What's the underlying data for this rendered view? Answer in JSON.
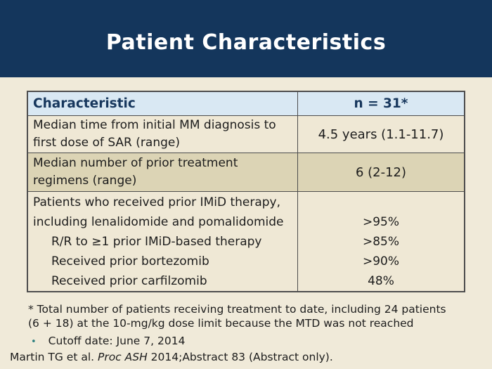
{
  "title": "Patient Characteristics",
  "table": {
    "header": {
      "characteristic": "Characteristic",
      "n": "n = 31*"
    },
    "rows": [
      {
        "lines": [
          "Median time from initial MM diagnosis to",
          "first dose of SAR (range)"
        ],
        "value": "4.5 years (1.1-11.7)"
      },
      {
        "lines": [
          "Median number of prior treatment",
          "regimens (range)"
        ],
        "value": "6 (2-12)"
      }
    ],
    "group": {
      "lines": [
        {
          "text": "Patients who received prior IMiD therapy,",
          "value": ""
        },
        {
          "text": "including lenalidomide and pomalidomide",
          "value": ">95%"
        },
        {
          "text": "R/R to ≥1 prior IMiD-based therapy",
          "value": ">85%"
        },
        {
          "text": "Received prior bortezomib",
          "value": ">90%"
        },
        {
          "text": "Received prior carfilzomib",
          "value": "48%"
        }
      ]
    }
  },
  "footnotes": {
    "asterisk_lines": [
      "* Total number of patients receiving treatment to date, including 24 patients",
      "(6 + 18) at the 10-mg/kg dose limit because the MTD was not reached"
    ],
    "bullet_icon": "•",
    "bullet_text": "Cutoff date: June 7, 2014"
  },
  "citation": {
    "prefix": "Martin TG et al. ",
    "italic": "Proc ASH",
    "suffix": " 2014;Abstract 83 (Abstract only)."
  },
  "colors": {
    "band_navy": "#14365C",
    "page_background": "#F0EAD9",
    "table_header_blue": "#D9E8F3",
    "row_cream": "#EFE8D5",
    "row_tan": "#DCD4B5",
    "border_gray": "#4D4D4D",
    "header_text_navy": "#17375D",
    "body_text": "#1C1C1C",
    "bullet_teal": "#2E8080",
    "title_white": "#FFFFFF"
  }
}
